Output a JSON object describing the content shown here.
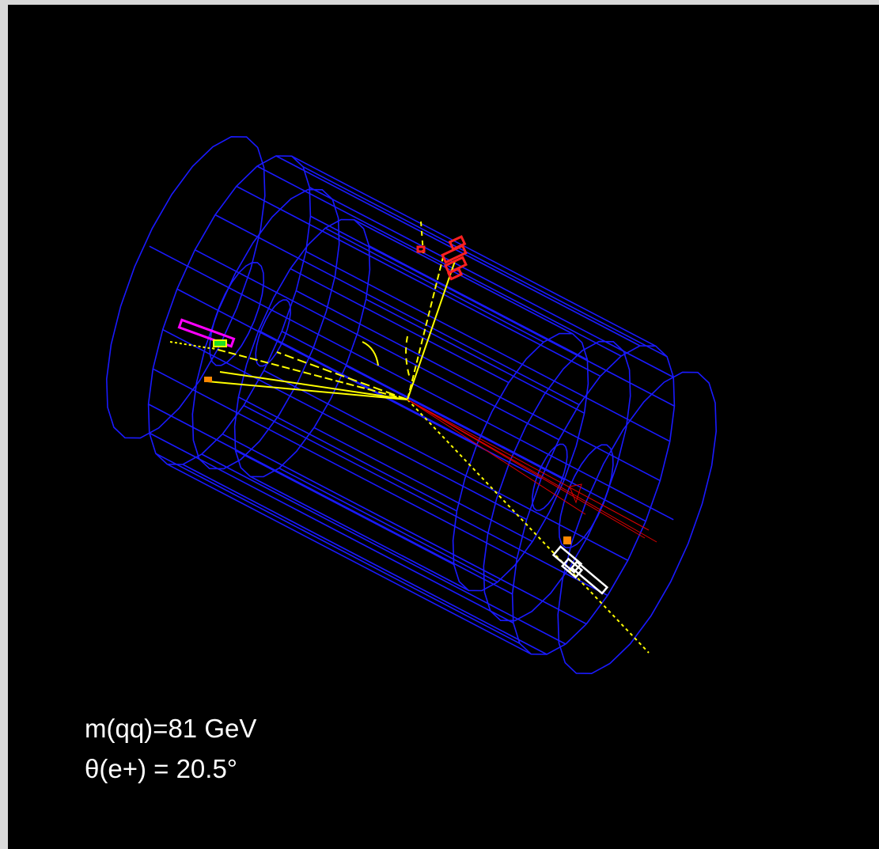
{
  "annotations": {
    "mass": "m(qq)=81 GeV",
    "angle": "θ(e+) = 20.5°"
  }
}
